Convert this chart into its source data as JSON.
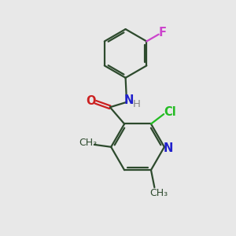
{
  "bg_color": "#e8e8e8",
  "bond_color": "#2d4a2d",
  "N_color": "#2020cc",
  "O_color": "#cc2020",
  "Cl_color": "#22bb22",
  "F_color": "#cc44cc",
  "H_color": "#888888",
  "line_width": 1.6,
  "font_size": 10.5,
  "figsize": [
    3.0,
    3.0
  ],
  "dpi": 100,
  "xlim": [
    0,
    10
  ],
  "ylim": [
    0,
    10
  ]
}
